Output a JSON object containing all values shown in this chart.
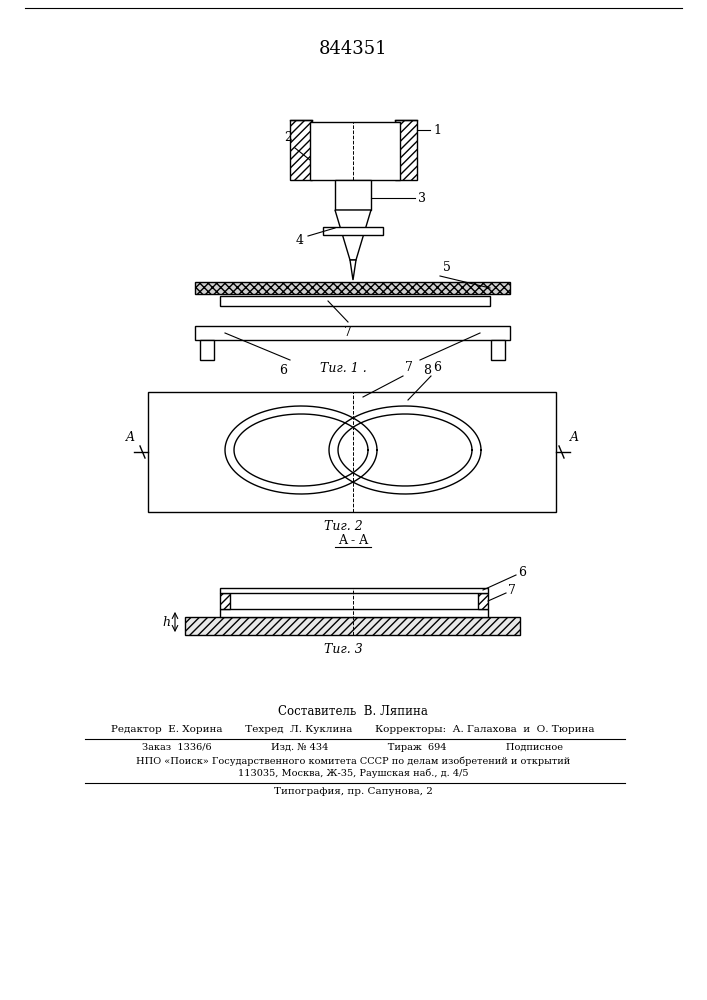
{
  "patent_number": "844351",
  "fig1_caption": "Τиг. 1 .",
  "fig2_caption": "Τиг. 2",
  "fig3_caption": "Τиг. 3",
  "aa_label": "A - A",
  "bg_color": "#ffffff",
  "line_color": "#000000",
  "footer_composer": "Составитель  В. Ляпина",
  "footer_line1": "Редактор  Е. Хорина       Техред  Л. Куклина       Корректоры:  А. Галахова  и  О. Тюрина",
  "footer_line2": "Заказ  1336/6                   Изд. № 434                   Тираж  694                   Подписное",
  "footer_line3": "НПО «Поиск» Государственного комитета СССР по делам изобретений и открытий",
  "footer_line4": "113035, Москва, Ж-35, Раушская наб., д. 4/5",
  "footer_line5": "Типография, пр. Сапунова, 2"
}
